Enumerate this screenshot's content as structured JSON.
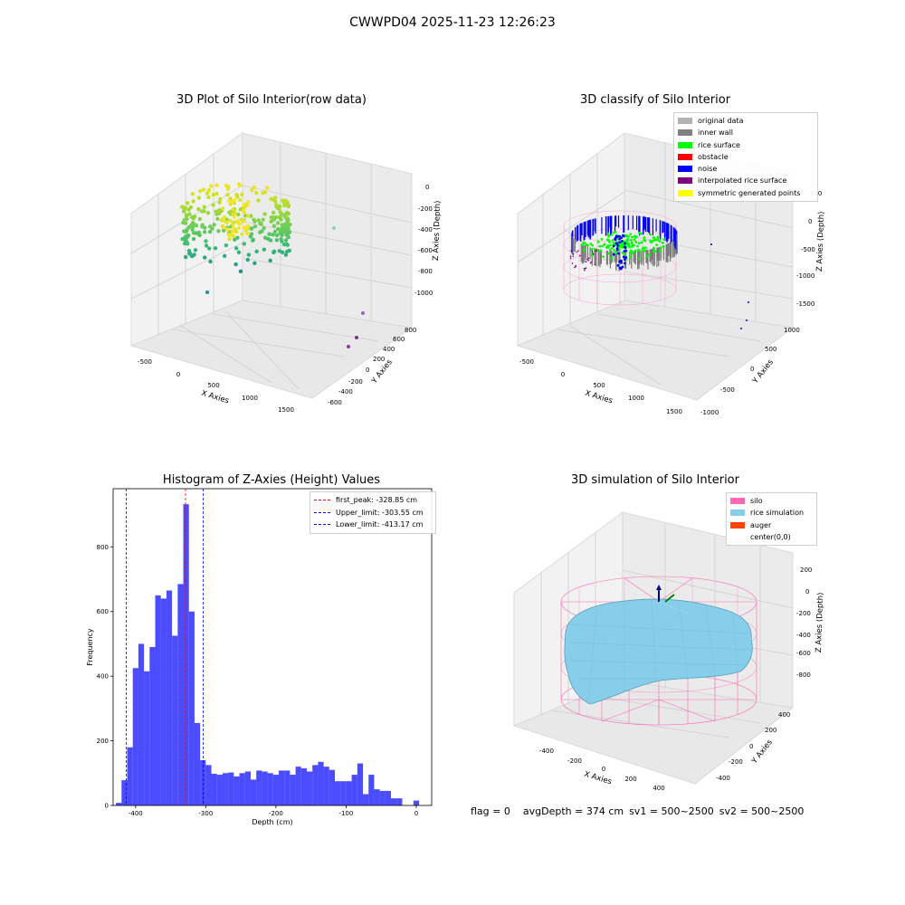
{
  "page": {
    "suptitle": "CWWPD04 2025-11-23 12:26:23"
  },
  "panels": {
    "raw": {
      "title": "3D Plot of Silo Interior(row data)",
      "x_label": "X Axies",
      "y_label": "Y Axies",
      "z_label": "Z Axies (Depth)",
      "x_ticks": [
        "-500",
        "0",
        "500",
        "1000",
        "1500"
      ],
      "y_ticks": [
        "800",
        "600",
        "400",
        "200",
        "0",
        "-200",
        "-400",
        "-600"
      ],
      "z_ticks": [
        "0",
        "-200",
        "-400",
        "-600",
        "-800",
        "-1000"
      ]
    },
    "classify": {
      "title": "3D classify of Silo Interior",
      "x_label": "X Axies",
      "y_label": "Y Axies",
      "z_label": "Z Axies (Depth)",
      "x_ticks": [
        "-500",
        "0",
        "500",
        "1000",
        "1500"
      ],
      "y_ticks": [
        "1000",
        "500",
        "0",
        "-500",
        "-1000"
      ],
      "z_ticks": [
        "500",
        "0",
        "-500",
        "-1000",
        "-1500"
      ],
      "legend": [
        {
          "label": "original data",
          "color": "#b3b3b3"
        },
        {
          "label": "inner wall",
          "color": "#808080"
        },
        {
          "label": "rice surface",
          "color": "#00ff00"
        },
        {
          "label": "obstacle",
          "color": "#ff0000"
        },
        {
          "label": "noise",
          "color": "#0000ff"
        },
        {
          "label": "interpolated rice surface",
          "color": "#800080"
        },
        {
          "label": "symmetric generated points",
          "color": "#ffff00"
        }
      ]
    },
    "simulation": {
      "title": "3D simulation of Silo Interior",
      "x_label": "X Axies",
      "y_label": "Y Axies",
      "z_label": "Z Axies (Depth)",
      "x_ticks": [
        "-400",
        "-200",
        "0",
        "200",
        "400"
      ],
      "y_ticks": [
        "400",
        "200",
        "0",
        "-200",
        "-400"
      ],
      "z_ticks": [
        "200",
        "0",
        "-200",
        "-400",
        "-600",
        "-800"
      ],
      "legend": [
        {
          "label": "silo",
          "color": "#ff69b4"
        },
        {
          "label": "rice simulation",
          "color": "#87ceeb"
        },
        {
          "label": "auger",
          "color": "#ff4500"
        },
        {
          "label": "center(0,0)",
          "color": ""
        }
      ]
    }
  },
  "status_line": {
    "flag": "flag = 0",
    "avg": "avgDepth = 374 cm",
    "sv1": "sv1 = 500~2500",
    "sv2": "sv2 = 500~2500"
  },
  "chart_data": {
    "type": "bar",
    "title": "Histogram of Z-Axies (Height) Values",
    "xlabel": "Depth (cm)",
    "ylabel": "Frequency",
    "xlim": [
      -432,
      22
    ],
    "ylim": [
      0,
      980
    ],
    "x_ticks": [
      -400,
      -300,
      -200,
      -100,
      0
    ],
    "y_ticks": [
      0,
      200,
      400,
      600,
      800
    ],
    "bar_color": "#0000ff",
    "bin_width": 8,
    "bins_left": [
      -428,
      -420,
      -412,
      -404,
      -396,
      -388,
      -380,
      -372,
      -364,
      -356,
      -348,
      -340,
      -332,
      -324,
      -316,
      -308,
      -300,
      -292,
      -284,
      -276,
      -268,
      -260,
      -252,
      -244,
      -236,
      -228,
      -220,
      -212,
      -204,
      -196,
      -188,
      -180,
      -172,
      -164,
      -156,
      -148,
      -140,
      -132,
      -124,
      -116,
      -108,
      -100,
      -92,
      -84,
      -76,
      -68,
      -60,
      -52,
      -44,
      -36,
      -28,
      -20,
      -12,
      -4
    ],
    "values": [
      8,
      78,
      180,
      425,
      500,
      415,
      490,
      650,
      640,
      665,
      525,
      685,
      932,
      600,
      255,
      140,
      125,
      98,
      95,
      100,
      102,
      90,
      100,
      105,
      80,
      108,
      105,
      100,
      95,
      108,
      108,
      95,
      120,
      115,
      105,
      125,
      135,
      120,
      110,
      75,
      75,
      75,
      95,
      130,
      35,
      95,
      50,
      45,
      45,
      22,
      22,
      0,
      0,
      15
    ],
    "vlines": [
      {
        "x": -328.85,
        "color": "#ff0000",
        "label": "first_peak: -328.85 cm"
      },
      {
        "x": -303.55,
        "color": "#0000ff",
        "label": "Upper_limit: -303.55 cm"
      },
      {
        "x": -413.17,
        "color": "#0000ff",
        "label": "Lower_limit: -413.17 cm"
      }
    ],
    "legend_position": "top-right"
  }
}
